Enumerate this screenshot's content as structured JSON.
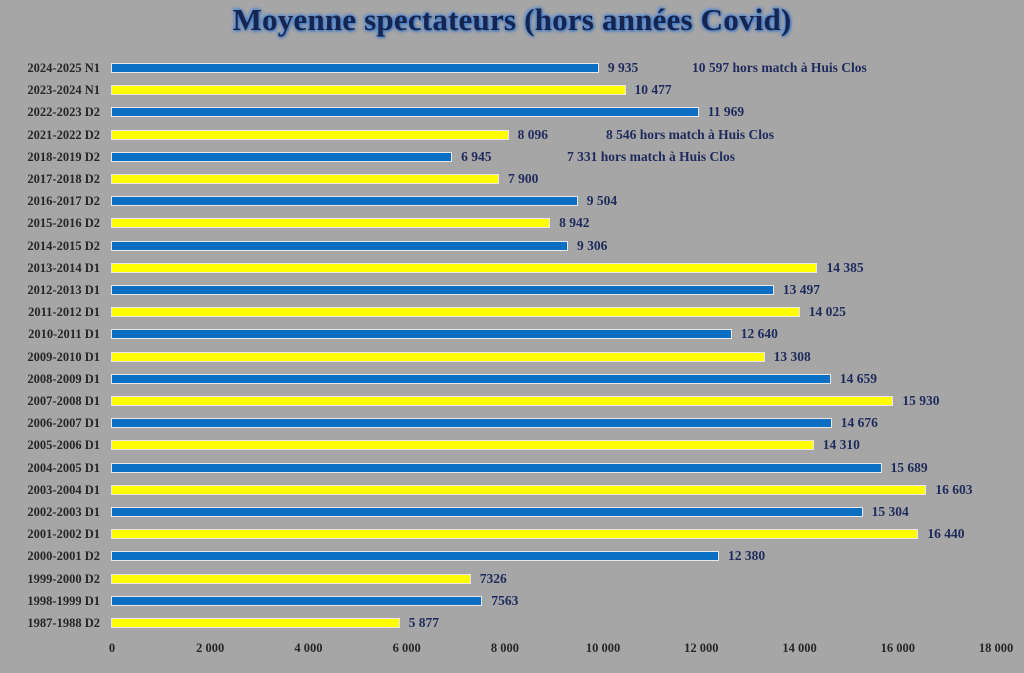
{
  "chart_data": {
    "type": "bar",
    "orientation": "horizontal",
    "title": "Moyenne spectateurs (hors années Covid)",
    "xlabel": "",
    "ylabel": "",
    "xlim": [
      0,
      18000
    ],
    "x_ticks": [
      "0",
      "2 000",
      "4 000",
      "6 000",
      "8 000",
      "10 000",
      "12 000",
      "14 000",
      "16 000",
      "18 000"
    ],
    "grid": false,
    "legend": null,
    "colors": {
      "blue": "#0a6fc2",
      "yellow": "#ffff00",
      "background": "#a6a6a6",
      "value_text": "#1f2a5c"
    },
    "categories": [
      "2024-2025 N1",
      "2023-2024 N1",
      "2022-2023 D2",
      "2021-2022  D2",
      "2018-2019 D2",
      "2017-2018 D2",
      "2016-2017 D2",
      "2015-2016 D2",
      "2014-2015 D2",
      "2013-2014 D1",
      "2012-2013 D1",
      "2011-2012 D1",
      "2010-2011 D1",
      "2009-2010 D1",
      "2008-2009 D1",
      "2007-2008 D1",
      "2006-2007 D1",
      "2005-2006 D1",
      "2004-2005 D1",
      "2003-2004 D1",
      "2002-2003 D1",
      "2001-2002 D1",
      "2000-2001 D2",
      "1999-2000 D2",
      "1998-1999 D1",
      "1987-1988 D2"
    ],
    "values": [
      9935,
      10477,
      11969,
      8096,
      6945,
      7900,
      9504,
      8942,
      9306,
      14385,
      13497,
      14025,
      12640,
      13308,
      14659,
      15930,
      14676,
      14310,
      15689,
      16603,
      15304,
      16440,
      12380,
      7326,
      7563,
      5877
    ],
    "value_labels": [
      "9 935",
      "10 477",
      "11 969",
      "8 096",
      "6 945",
      "7 900",
      "9 504",
      "8 942",
      "9 306",
      "14 385",
      "13 497",
      "14 025",
      "12 640",
      "13 308",
      "14 659",
      "15 930",
      "14 676",
      "14 310",
      "15 689",
      "16 603",
      "15 304",
      "16 440",
      "12 380",
      "7326",
      "7563",
      "5 877"
    ],
    "bar_colors": [
      "blue",
      "yellow",
      "blue",
      "yellow",
      "blue",
      "yellow",
      "blue",
      "yellow",
      "blue",
      "yellow",
      "blue",
      "yellow",
      "blue",
      "yellow",
      "blue",
      "yellow",
      "blue",
      "yellow",
      "blue",
      "yellow",
      "blue",
      "yellow",
      "blue",
      "yellow",
      "blue",
      "yellow"
    ],
    "annotations": [
      {
        "row": 0,
        "text": "10 597 hors match à Huis Clos",
        "value": 10597
      },
      {
        "row": 3,
        "text": "8 546 hors match à Huis Clos",
        "value": 8546
      },
      {
        "row": 4,
        "text": "7 331 hors match à Huis Clos",
        "value": 7331
      }
    ]
  }
}
